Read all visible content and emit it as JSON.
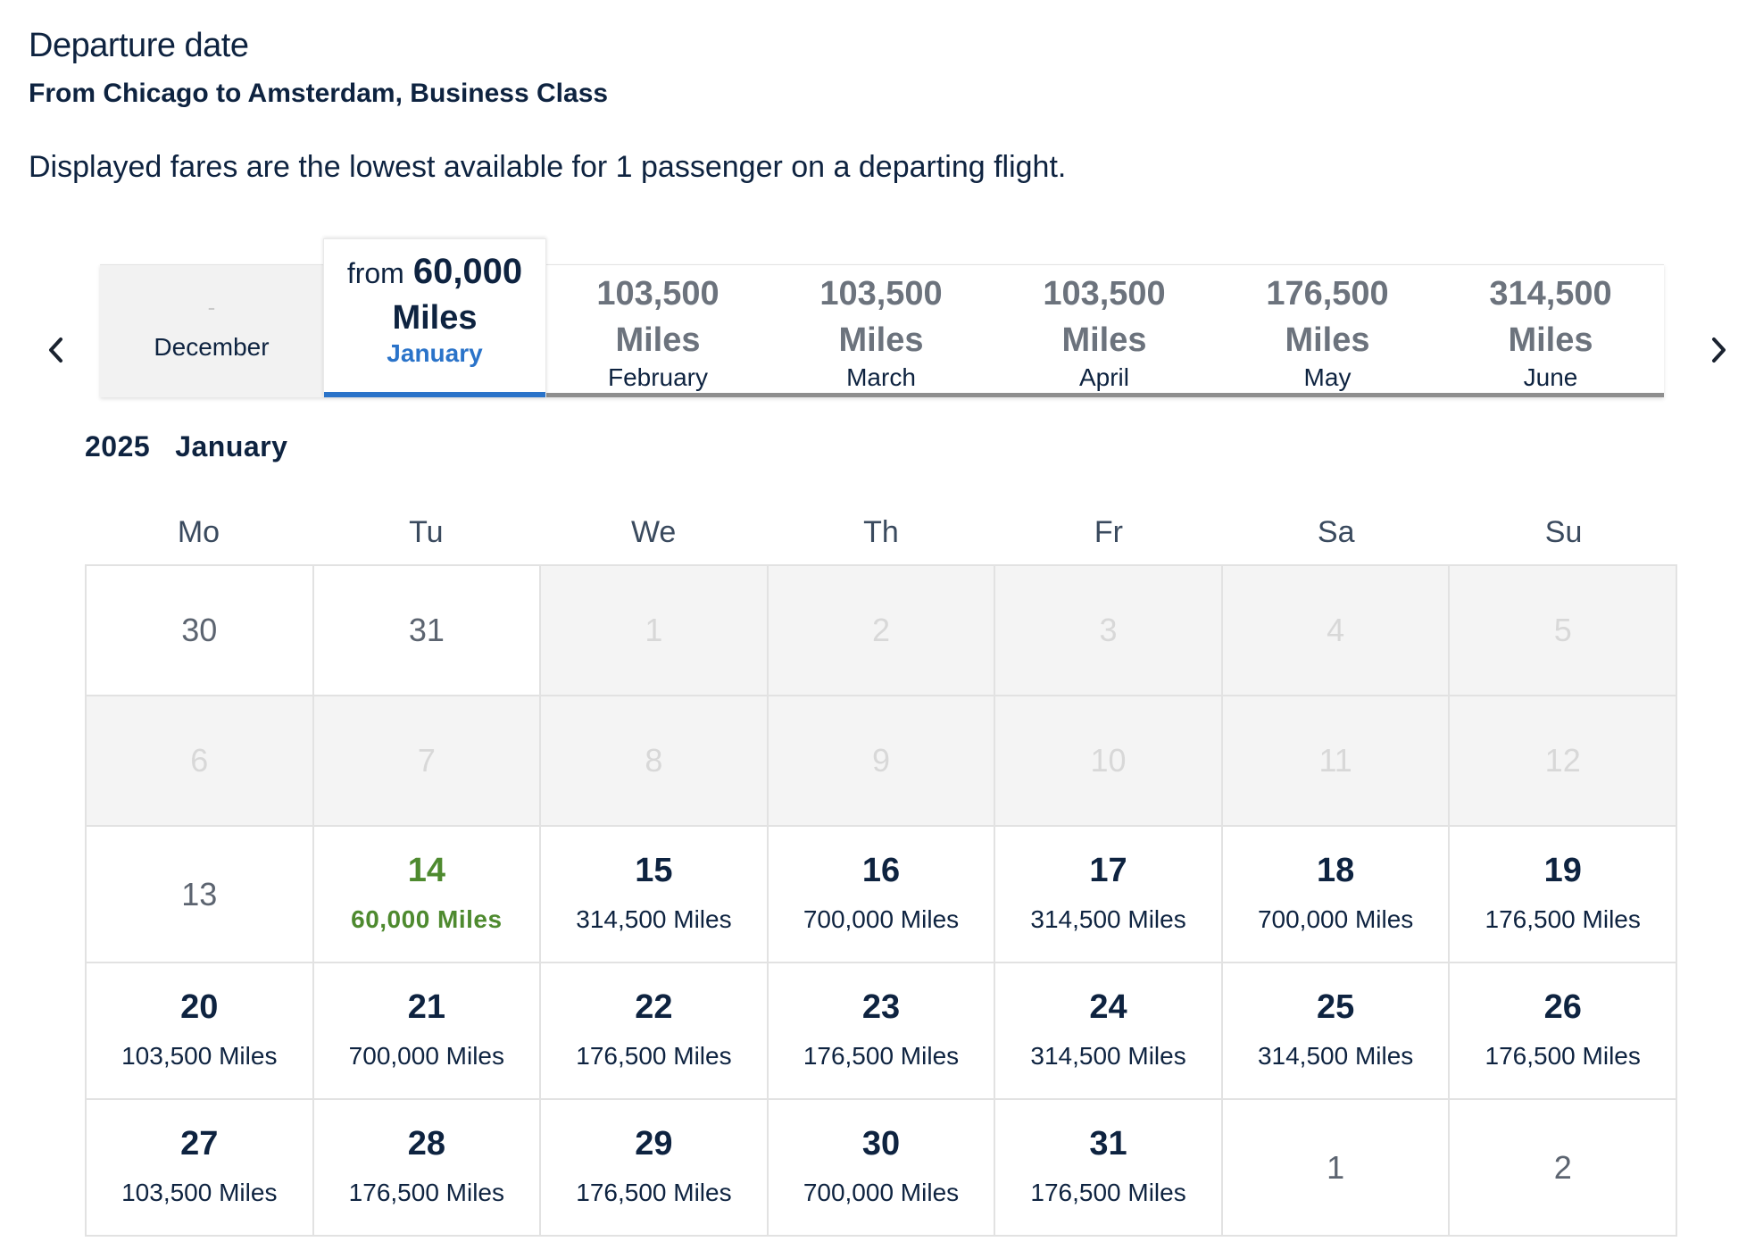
{
  "header": {
    "title": "Departure date",
    "subtitle": "From Chicago to Amsterdam, Business Class",
    "note": "Displayed fares are the lowest available for 1 passenger on a departing flight."
  },
  "month_tabs": {
    "disabled": {
      "dash": "-",
      "month": "December"
    },
    "selected": {
      "from": "from",
      "price": "60,000",
      "unit": "Miles",
      "month": "January"
    },
    "others": [
      {
        "price": "103,500",
        "unit": "Miles",
        "month": "February"
      },
      {
        "price": "103,500",
        "unit": "Miles",
        "month": "March"
      },
      {
        "price": "103,500",
        "unit": "Miles",
        "month": "April"
      },
      {
        "price": "176,500",
        "unit": "Miles",
        "month": "May"
      },
      {
        "price": "314,500",
        "unit": "Miles",
        "month": "June"
      }
    ]
  },
  "calendar": {
    "year": "2025",
    "month": "January",
    "weekdays": [
      "Mo",
      "Tu",
      "We",
      "Th",
      "Fr",
      "Sa",
      "Su"
    ],
    "days": [
      {
        "day": "30",
        "state": "plain"
      },
      {
        "day": "31",
        "state": "plain"
      },
      {
        "day": "1",
        "state": "disabled"
      },
      {
        "day": "2",
        "state": "disabled"
      },
      {
        "day": "3",
        "state": "disabled"
      },
      {
        "day": "4",
        "state": "disabled"
      },
      {
        "day": "5",
        "state": "disabled"
      },
      {
        "day": "6",
        "state": "disabled"
      },
      {
        "day": "7",
        "state": "disabled"
      },
      {
        "day": "8",
        "state": "disabled"
      },
      {
        "day": "9",
        "state": "disabled"
      },
      {
        "day": "10",
        "state": "disabled"
      },
      {
        "day": "11",
        "state": "disabled"
      },
      {
        "day": "12",
        "state": "disabled"
      },
      {
        "day": "13",
        "state": "plain"
      },
      {
        "day": "14",
        "state": "lowest",
        "fare": "60,000 Miles"
      },
      {
        "day": "15",
        "state": "priced",
        "fare": "314,500 Miles"
      },
      {
        "day": "16",
        "state": "priced",
        "fare": "700,000 Miles"
      },
      {
        "day": "17",
        "state": "priced",
        "fare": "314,500 Miles"
      },
      {
        "day": "18",
        "state": "priced",
        "fare": "700,000 Miles"
      },
      {
        "day": "19",
        "state": "priced",
        "fare": "176,500 Miles"
      },
      {
        "day": "20",
        "state": "priced",
        "fare": "103,500 Miles"
      },
      {
        "day": "21",
        "state": "priced",
        "fare": "700,000 Miles"
      },
      {
        "day": "22",
        "state": "priced",
        "fare": "176,500 Miles"
      },
      {
        "day": "23",
        "state": "priced",
        "fare": "176,500 Miles"
      },
      {
        "day": "24",
        "state": "priced",
        "fare": "314,500 Miles"
      },
      {
        "day": "25",
        "state": "priced",
        "fare": "314,500 Miles"
      },
      {
        "day": "26",
        "state": "priced",
        "fare": "176,500 Miles"
      },
      {
        "day": "27",
        "state": "priced",
        "fare": "103,500 Miles"
      },
      {
        "day": "28",
        "state": "priced",
        "fare": "176,500 Miles"
      },
      {
        "day": "29",
        "state": "priced",
        "fare": "176,500 Miles"
      },
      {
        "day": "30",
        "state": "priced",
        "fare": "700,000 Miles"
      },
      {
        "day": "31",
        "state": "priced",
        "fare": "176,500 Miles"
      },
      {
        "day": "1",
        "state": "plain"
      },
      {
        "day": "2",
        "state": "plain"
      }
    ]
  },
  "icons": {
    "prev": "chevron-left-icon",
    "next": "chevron-right-icon"
  },
  "colors": {
    "accent_blue": "#2a73c9",
    "lowest_green": "#4e8a2f",
    "text_navy": "#0e2340"
  }
}
